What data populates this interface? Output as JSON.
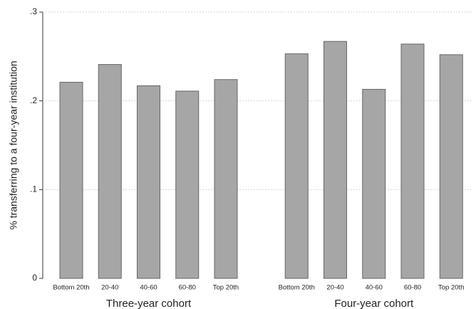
{
  "chart_data": {
    "type": "bar",
    "ylabel": "% transferring to a four-year institution",
    "ylim": [
      0,
      0.3
    ],
    "yticks": [
      0,
      {
        "value": 0.1,
        "label": ".1"
      },
      {
        "value": 0.2,
        "label": ".2"
      },
      {
        "value": 0.3,
        "label": ".3"
      }
    ],
    "grid": true,
    "color": "#a6a6a6",
    "groups": [
      {
        "label": "Three-year cohort",
        "categories": [
          "Bottom 20th",
          "20-40",
          "40-60",
          "60-80",
          "Top 20th"
        ],
        "values": [
          0.221,
          0.241,
          0.217,
          0.211,
          0.224
        ]
      },
      {
        "label": "Four-year cohort",
        "categories": [
          "Bottom 20th",
          "20-40",
          "40-60",
          "60-80",
          "Top 20th"
        ],
        "values": [
          0.253,
          0.267,
          0.213,
          0.264,
          0.252
        ]
      }
    ]
  }
}
